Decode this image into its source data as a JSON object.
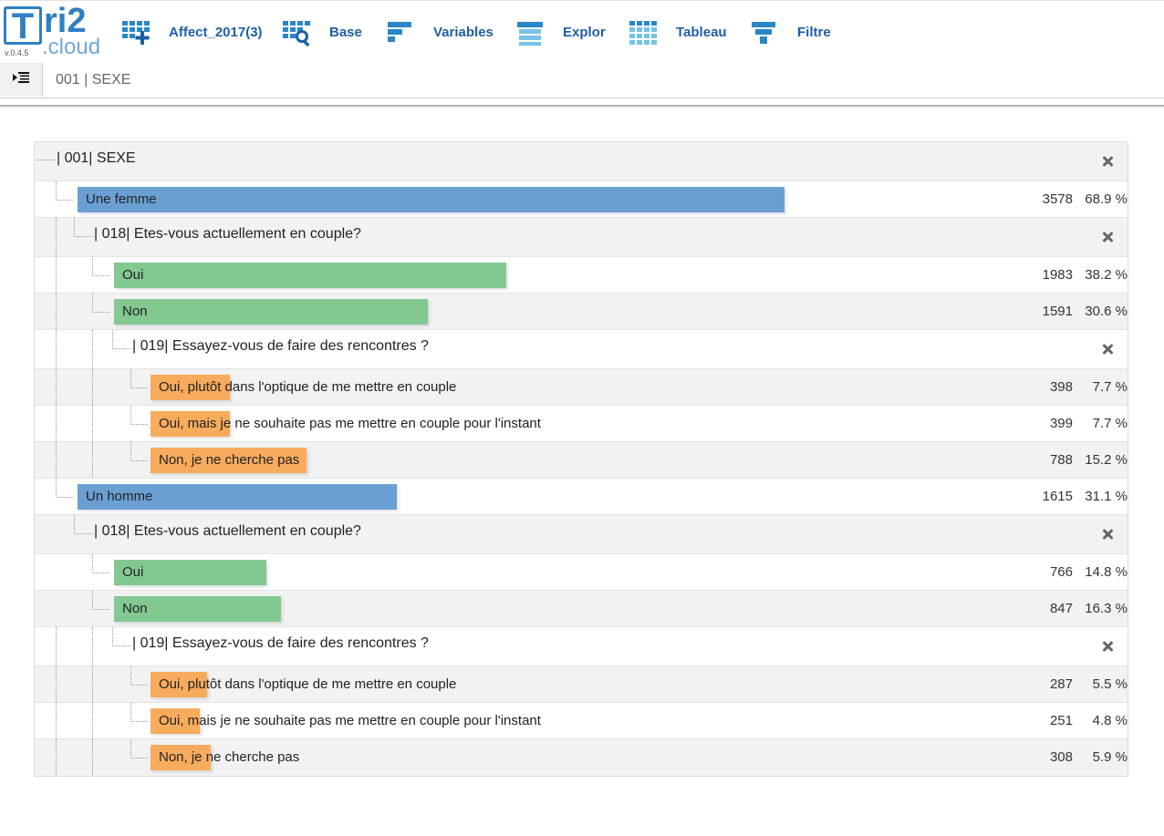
{
  "app": {
    "logo_letter": "T",
    "logo_text": "ri2",
    "logo_sub": ".cloud",
    "version": "v.0.4.5"
  },
  "toolbar": [
    {
      "label": "Affect_2017(3)",
      "icon": "grid-plus-icon"
    },
    {
      "label": "Base",
      "icon": "grid-search-icon"
    },
    {
      "label": "Variables",
      "icon": "variables-bars-icon"
    },
    {
      "label": "Explor",
      "icon": "explor-bars-icon"
    },
    {
      "label": "Tableau",
      "icon": "table-grid-icon"
    },
    {
      "label": "Filtre",
      "icon": "funnel-icon"
    }
  ],
  "breadcrumb": {
    "text": "001 | SEXE",
    "toggle_icon": "sidebar-toggle-icon"
  },
  "colors": {
    "accent": "#1f5fa6",
    "bar_level1": "#6a9fd4",
    "bar_level2": "#82c991",
    "bar_level3": "#f7ab5c"
  },
  "tree": {
    "root_title": "| 001| SEXE",
    "female": {
      "label": "Une femme",
      "count": "3578",
      "pct": "68.9 %",
      "share": 0.689,
      "q018_title": "| 018| Etes-vous actuellement en couple?",
      "oui": {
        "label": "Oui",
        "count": "1983",
        "pct": "38.2 %",
        "share": 0.382
      },
      "non": {
        "label": "Non",
        "count": "1591",
        "pct": "30.6 %",
        "share": 0.306
      },
      "q019_title": "| 019| Essayez-vous de faire des rencontres ?",
      "r1": {
        "label": "Oui, plutôt dans l'optique de me mettre en couple",
        "count": "398",
        "pct": "7.7 %",
        "share": 0.077
      },
      "r2": {
        "label": "Oui, mais je ne souhaite pas me mettre en couple pour l'instant",
        "count": "399",
        "pct": "7.7 %",
        "share": 0.077
      },
      "r3": {
        "label": "Non, je ne cherche pas",
        "count": "788",
        "pct": "15.2 %",
        "share": 0.152
      }
    },
    "male": {
      "label": "Un homme",
      "count": "1615",
      "pct": "31.1 %",
      "share": 0.311,
      "q018_title": "| 018| Etes-vous actuellement en couple?",
      "oui": {
        "label": "Oui",
        "count": "766",
        "pct": "14.8 %",
        "share": 0.148
      },
      "non": {
        "label": "Non",
        "count": "847",
        "pct": "16.3 %",
        "share": 0.163
      },
      "q019_title": "| 019| Essayez-vous de faire des rencontres ?",
      "r1": {
        "label": "Oui, plutôt dans l'optique de me mettre en couple",
        "count": "287",
        "pct": "5.5 %",
        "share": 0.055
      },
      "r2": {
        "label": "Oui, mais je ne souhaite pas me mettre en couple pour l'instant",
        "count": "251",
        "pct": "4.8 %",
        "share": 0.048
      },
      "r3": {
        "label": "Non, je ne cherche pas",
        "count": "308",
        "pct": "5.9 %",
        "share": 0.059
      }
    }
  }
}
